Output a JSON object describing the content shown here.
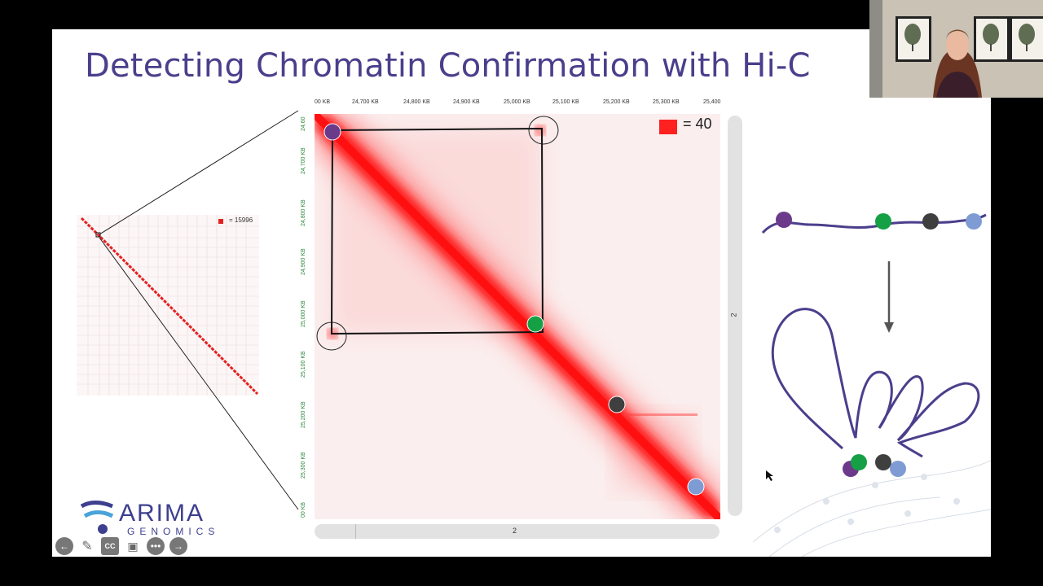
{
  "slide": {
    "title": "Detecting Chromatin Confirmation with Hi-C"
  },
  "heatmap": {
    "x_ticks": [
      "00 KB",
      "24,700 KB",
      "24,800 KB",
      "24,900 KB",
      "25,000 KB",
      "25,100 KB",
      "25,200 KB",
      "25,300 KB",
      "25,400"
    ],
    "y_ticks": [
      "24,60",
      "24,700 KB",
      "24,800 KB",
      "24,900 KB",
      "25,000 KB",
      "25,100 KB",
      "25,200 KB",
      "25,300 KB",
      "00 KB"
    ],
    "legend_value": "= 40",
    "legend_color": "#ff2020",
    "vertical_scroll_label": "2",
    "horizontal_scroll_label": "2"
  },
  "mini_map": {
    "legend_value": "= 15996"
  },
  "logo": {
    "name": "ARIMA",
    "sub": "GENOMICS"
  },
  "diagram": {
    "bead_colors": {
      "purple": "#6b3a8a",
      "green": "#15a045",
      "gray": "#3f3f3f",
      "blue": "#7f9bd4"
    },
    "line_color": "#4a3f8c"
  },
  "toolbar": {
    "buttons": [
      "back-icon",
      "pen-icon",
      "cc-icon",
      "video-off-icon",
      "more-icon",
      "forward-icon"
    ],
    "cc_label": "CC"
  }
}
